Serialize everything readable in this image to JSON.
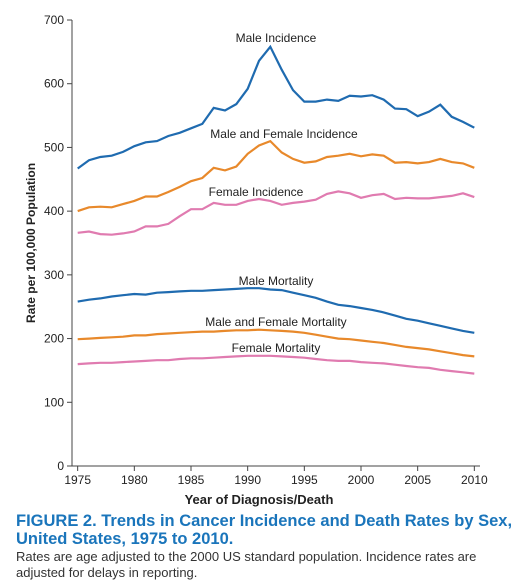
{
  "chart_data": {
    "type": "line",
    "x_label": "Year of Diagnosis/Death",
    "y_label": "Rate per 100,000 Population",
    "x": [
      1975,
      1976,
      1977,
      1978,
      1979,
      1980,
      1981,
      1982,
      1983,
      1984,
      1985,
      1986,
      1987,
      1988,
      1989,
      1990,
      1991,
      1992,
      1993,
      1994,
      1995,
      1996,
      1997,
      1998,
      1999,
      2000,
      2001,
      2002,
      2003,
      2004,
      2005,
      2006,
      2007,
      2008,
      2009,
      2010
    ],
    "series": [
      {
        "name": "Male Incidence",
        "color": "#1f6bb0",
        "values": [
          467,
          480,
          485,
          487,
          493,
          502,
          508,
          510,
          518,
          523,
          530,
          537,
          562,
          558,
          568,
          592,
          636,
          658,
          622,
          590,
          572,
          572,
          575,
          573,
          581,
          580,
          582,
          575,
          561,
          560,
          549,
          556,
          567,
          548,
          540,
          531
        ]
      },
      {
        "name": "Male and Female Incidence",
        "color": "#e8892b",
        "values": [
          400,
          406,
          407,
          406,
          411,
          416,
          423,
          423,
          430,
          438,
          447,
          452,
          468,
          464,
          470,
          490,
          503,
          510,
          492,
          482,
          476,
          478,
          485,
          487,
          490,
          486,
          489,
          487,
          476,
          477,
          475,
          477,
          482,
          477,
          475,
          468
        ]
      },
      {
        "name": "Female Incidence",
        "color": "#e07bb0",
        "values": [
          366,
          368,
          364,
          363,
          365,
          368,
          376,
          376,
          380,
          392,
          403,
          403,
          413,
          410,
          410,
          416,
          419,
          416,
          410,
          413,
          415,
          418,
          427,
          431,
          428,
          421,
          425,
          427,
          419,
          421,
          420,
          420,
          422,
          424,
          428,
          422
        ]
      },
      {
        "name": "Male Mortality",
        "color": "#1f6bb0",
        "values": [
          258,
          261,
          263,
          266,
          268,
          270,
          269,
          272,
          273,
          274,
          275,
          275,
          276,
          277,
          278,
          279,
          279,
          277,
          276,
          272,
          268,
          264,
          258,
          253,
          251,
          248,
          245,
          241,
          236,
          231,
          228,
          224,
          220,
          216,
          212,
          209
        ]
      },
      {
        "name": "Male and Female Mortality",
        "color": "#e8892b",
        "values": [
          199,
          200,
          201,
          202,
          203,
          205,
          205,
          207,
          208,
          209,
          210,
          211,
          211,
          212,
          213,
          213,
          214,
          213,
          212,
          211,
          209,
          206,
          203,
          200,
          199,
          197,
          195,
          193,
          190,
          187,
          185,
          183,
          180,
          177,
          174,
          172
        ]
      },
      {
        "name": "Female Mortality",
        "color": "#e07bb0",
        "values": [
          160,
          161,
          162,
          162,
          163,
          164,
          165,
          166,
          166,
          168,
          169,
          169,
          170,
          171,
          172,
          173,
          173,
          173,
          172,
          171,
          170,
          168,
          166,
          165,
          165,
          163,
          162,
          161,
          159,
          157,
          155,
          154,
          151,
          149,
          147,
          145
        ]
      }
    ],
    "xlim": [
      1974.5,
      2010.5
    ],
    "xticks": [
      1975,
      1980,
      1985,
      1990,
      1995,
      2000,
      2005,
      2010
    ],
    "ylim": [
      0,
      700
    ],
    "yticks": [
      0,
      100,
      200,
      300,
      400,
      500,
      600,
      700
    ],
    "caption_title": "FIGURE 2. Trends in Cancer Incidence and Death Rates by Sex, United States, 1975 to 2010.",
    "caption_note": "Rates are age adjusted to the 2000 US standard population. Incidence rates are adjusted for delays in reporting."
  }
}
